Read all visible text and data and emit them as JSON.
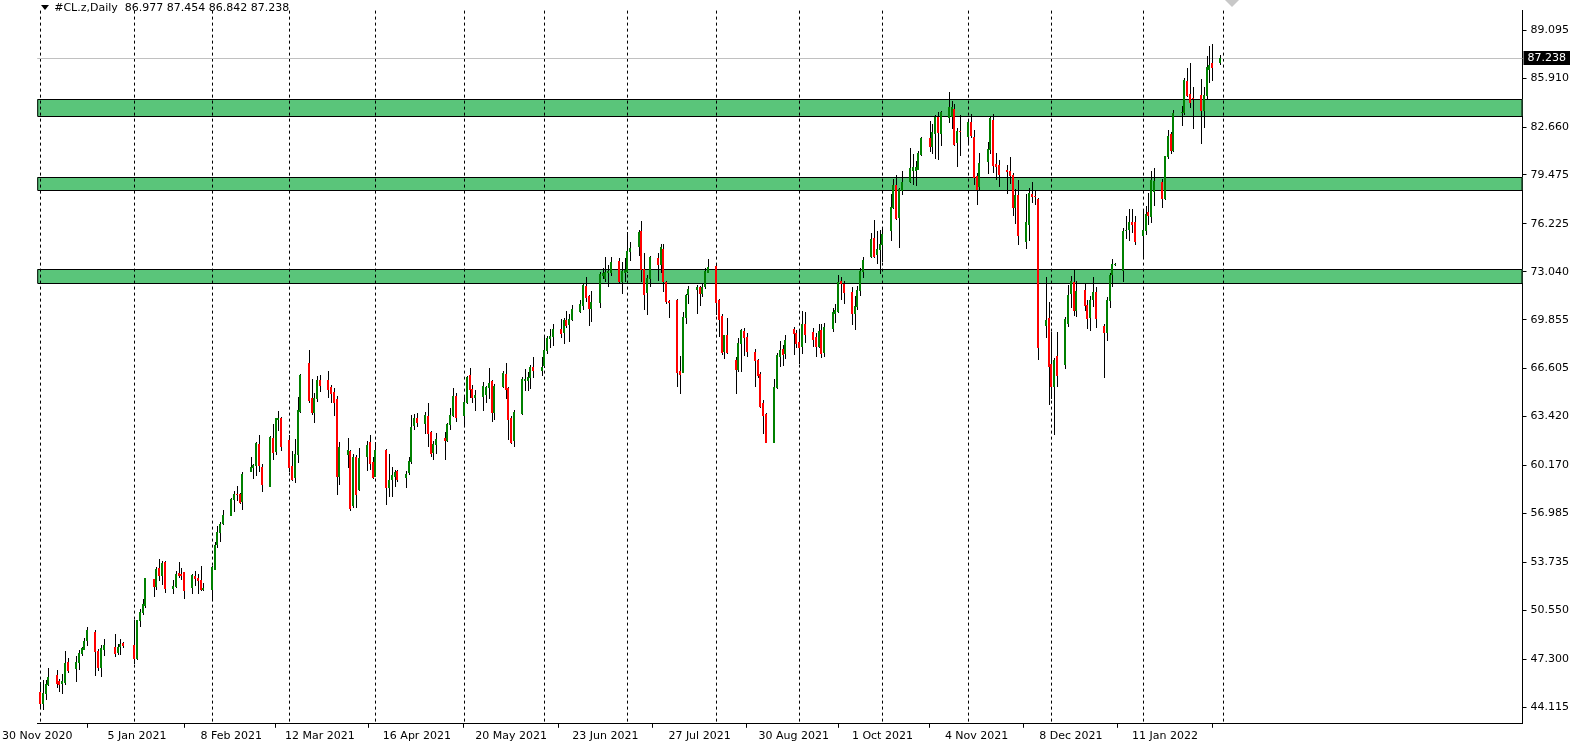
{
  "chart_data": {
    "type": "candlestick",
    "title": "#CL.z,Daily  86.977 87.454 86.842 87.238",
    "x": [
      "2020-12-01",
      "2020-12-02",
      "2020-12-03",
      "2020-12-04",
      "2020-12-07",
      "2020-12-08",
      "2020-12-09",
      "2020-12-10",
      "2020-12-11",
      "2020-12-14",
      "2020-12-15",
      "2020-12-16",
      "2020-12-17",
      "2020-12-18",
      "2020-12-21",
      "2020-12-22",
      "2020-12-23",
      "2020-12-24",
      "2020-12-28",
      "2020-12-29",
      "2020-12-30",
      "2020-12-31",
      "2021-01-04",
      "2021-01-05",
      "2021-01-06",
      "2021-01-07",
      "2021-01-08",
      "2021-01-11",
      "2021-01-12",
      "2021-01-13",
      "2021-01-14",
      "2021-01-15",
      "2021-01-18",
      "2021-01-19",
      "2021-01-20",
      "2021-01-21",
      "2021-01-22",
      "2021-01-25",
      "2021-01-26",
      "2021-01-27",
      "2021-01-28",
      "2021-01-29",
      "2021-02-01",
      "2021-02-02",
      "2021-02-03",
      "2021-02-04",
      "2021-02-05",
      "2021-02-08",
      "2021-02-09",
      "2021-02-10",
      "2021-02-11",
      "2021-02-12",
      "2021-02-15",
      "2021-02-16",
      "2021-02-17",
      "2021-02-18",
      "2021-02-19",
      "2021-02-22",
      "2021-02-23",
      "2021-02-24",
      "2021-02-25",
      "2021-02-26",
      "2021-03-01",
      "2021-03-02",
      "2021-03-03",
      "2021-03-04",
      "2021-03-05",
      "2021-03-08",
      "2021-03-09",
      "2021-03-10",
      "2021-03-11",
      "2021-03-12",
      "2021-03-15",
      "2021-03-16",
      "2021-03-17",
      "2021-03-18",
      "2021-03-19",
      "2021-03-22",
      "2021-03-23",
      "2021-03-24",
      "2021-03-25",
      "2021-03-26",
      "2021-03-29",
      "2021-03-30",
      "2021-03-31",
      "2021-04-01",
      "2021-04-05",
      "2021-04-06",
      "2021-04-07",
      "2021-04-08",
      "2021-04-09",
      "2021-04-12",
      "2021-04-13",
      "2021-04-14",
      "2021-04-15",
      "2021-04-16",
      "2021-04-19",
      "2021-04-20",
      "2021-04-21",
      "2021-04-22",
      "2021-04-23",
      "2021-04-26",
      "2021-04-27",
      "2021-04-28",
      "2021-04-29",
      "2021-04-30",
      "2021-05-03",
      "2021-05-04",
      "2021-05-05",
      "2021-05-06",
      "2021-05-07",
      "2021-05-10",
      "2021-05-11",
      "2021-05-12",
      "2021-05-13",
      "2021-05-14",
      "2021-05-17",
      "2021-05-18",
      "2021-05-19",
      "2021-05-20",
      "2021-05-21",
      "2021-05-24",
      "2021-05-25",
      "2021-05-26",
      "2021-05-27",
      "2021-05-28",
      "2021-05-31",
      "2021-06-01",
      "2021-06-02",
      "2021-06-03",
      "2021-06-04",
      "2021-06-07",
      "2021-06-08",
      "2021-06-09",
      "2021-06-10",
      "2021-06-11",
      "2021-06-14",
      "2021-06-15",
      "2021-06-16",
      "2021-06-17",
      "2021-06-18",
      "2021-06-21",
      "2021-06-22",
      "2021-06-23",
      "2021-06-24",
      "2021-06-25",
      "2021-06-28",
      "2021-06-29",
      "2021-06-30",
      "2021-07-01",
      "2021-07-02",
      "2021-07-05",
      "2021-07-06",
      "2021-07-07",
      "2021-07-08",
      "2021-07-09",
      "2021-07-12",
      "2021-07-13",
      "2021-07-14",
      "2021-07-15",
      "2021-07-16",
      "2021-07-19",
      "2021-07-20",
      "2021-07-21",
      "2021-07-22",
      "2021-07-23",
      "2021-07-26",
      "2021-07-27",
      "2021-07-28",
      "2021-07-29",
      "2021-07-30",
      "2021-08-02",
      "2021-08-03",
      "2021-08-04",
      "2021-08-05",
      "2021-08-06",
      "2021-08-09",
      "2021-08-10",
      "2021-08-11",
      "2021-08-12",
      "2021-08-13",
      "2021-08-16",
      "2021-08-17",
      "2021-08-18",
      "2021-08-19",
      "2021-08-20",
      "2021-08-23",
      "2021-08-24",
      "2021-08-25",
      "2021-08-26",
      "2021-08-27",
      "2021-08-30",
      "2021-08-31",
      "2021-09-01",
      "2021-09-02",
      "2021-09-03",
      "2021-09-06",
      "2021-09-07",
      "2021-09-08",
      "2021-09-09",
      "2021-09-10",
      "2021-09-13",
      "2021-09-14",
      "2021-09-15",
      "2021-09-16",
      "2021-09-17",
      "2021-09-20",
      "2021-09-21",
      "2021-09-22",
      "2021-09-23",
      "2021-09-24",
      "2021-09-27",
      "2021-09-28",
      "2021-09-29",
      "2021-09-30",
      "2021-10-01",
      "2021-10-04",
      "2021-10-05",
      "2021-10-06",
      "2021-10-07",
      "2021-10-08",
      "2021-10-11",
      "2021-10-12",
      "2021-10-13",
      "2021-10-14",
      "2021-10-15",
      "2021-10-18",
      "2021-10-19",
      "2021-10-20",
      "2021-10-21",
      "2021-10-22",
      "2021-10-25",
      "2021-10-26",
      "2021-10-27",
      "2021-10-28",
      "2021-10-29",
      "2021-11-01",
      "2021-11-02",
      "2021-11-03",
      "2021-11-04",
      "2021-11-05",
      "2021-11-08",
      "2021-11-09",
      "2021-11-10",
      "2021-11-11",
      "2021-11-12",
      "2021-11-15",
      "2021-11-16",
      "2021-11-17",
      "2021-11-18",
      "2021-11-19",
      "2021-11-22",
      "2021-11-23",
      "2021-11-24",
      "2021-11-25",
      "2021-11-26",
      "2021-11-29",
      "2021-11-30",
      "2021-12-01",
      "2021-12-02",
      "2021-12-03",
      "2021-12-06",
      "2021-12-07",
      "2021-12-08",
      "2021-12-09",
      "2021-12-10",
      "2021-12-13",
      "2021-12-14",
      "2021-12-15",
      "2021-12-16",
      "2021-12-17",
      "2021-12-20",
      "2021-12-21",
      "2021-12-22",
      "2021-12-23",
      "2021-12-24",
      "2021-12-27",
      "2021-12-28",
      "2021-12-29",
      "2021-12-30",
      "2021-12-31",
      "2022-01-03",
      "2022-01-04",
      "2022-01-05",
      "2022-01-06",
      "2022-01-07",
      "2022-01-10",
      "2022-01-11",
      "2022-01-12",
      "2022-01-13",
      "2022-01-14",
      "2022-01-17",
      "2022-01-18",
      "2022-01-19",
      "2022-01-20",
      "2022-01-21",
      "2022-01-24",
      "2022-01-25",
      "2022-01-26",
      "2022-01-27",
      "2022-01-28",
      "2022-01-31"
    ],
    "ohlc": [
      [
        45.14,
        45.75,
        44.18,
        44.4
      ],
      [
        44.4,
        45.93,
        43.96,
        45.03
      ],
      [
        45.05,
        45.91,
        44.68,
        45.67
      ],
      [
        45.64,
        46.74,
        45.6,
        46.12
      ],
      [
        46.24,
        46.58,
        45.43,
        45.71
      ],
      [
        45.82,
        45.99,
        45.21,
        45.67
      ],
      [
        45.69,
        46.34,
        45.05,
        45.82
      ],
      [
        45.77,
        47.83,
        45.64,
        47.02
      ],
      [
        47.11,
        47.39,
        46.43,
        46.56
      ],
      [
        46.74,
        47.5,
        45.86,
        47.11
      ],
      [
        47.09,
        47.9,
        46.65,
        47.72
      ],
      [
        47.68,
        48.12,
        47.57,
        48.05
      ],
      [
        48.0,
        48.69,
        47.94,
        48.49
      ],
      [
        48.55,
        49.43,
        48.23,
        49.21
      ],
      [
        49.1,
        49.21,
        46.24,
        47.83
      ],
      [
        47.85,
        48.0,
        46.58,
        46.76
      ],
      [
        46.76,
        48.23,
        46.19,
        48.05
      ],
      [
        48.0,
        48.62,
        47.57,
        48.23
      ],
      [
        48.09,
        48.95,
        47.5,
        47.68
      ],
      [
        47.74,
        48.33,
        47.66,
        48.09
      ],
      [
        48.16,
        48.66,
        47.61,
        48.31
      ],
      [
        48.36,
        48.44,
        48.12,
        48.23
      ],
      [
        48.23,
        49.91,
        47.02,
        47.35
      ],
      [
        47.35,
        49.91,
        47.29,
        49.87
      ],
      [
        49.87,
        50.63,
        49.47,
        50.46
      ],
      [
        50.41,
        51.29,
        50.3,
        50.94
      ],
      [
        50.89,
        52.71,
        50.74,
        52.69
      ],
      [
        52.62,
        52.64,
        51.51,
        52.16
      ],
      [
        52.16,
        53.43,
        51.99,
        53.3
      ],
      [
        53.36,
        53.94,
        52.53,
        52.86
      ],
      [
        52.86,
        53.8,
        52.27,
        53.69
      ],
      [
        53.74,
        53.8,
        51.77,
        52.01
      ],
      [
        52.01,
        52.55,
        51.72,
        52.16
      ],
      [
        52.14,
        53.15,
        52.12,
        52.95
      ],
      [
        53.01,
        53.76,
        52.77,
        52.86
      ],
      [
        52.95,
        53.34,
        52.64,
        52.86
      ],
      [
        53.08,
        53.1,
        51.35,
        51.9
      ],
      [
        52.07,
        52.93,
        51.72,
        52.86
      ],
      [
        52.84,
        53.15,
        52.2,
        52.69
      ],
      [
        52.71,
        52.97,
        51.72,
        52.56
      ],
      [
        52.56,
        53.47,
        51.92,
        51.94
      ],
      [
        51.99,
        52.38,
        51.88,
        52.01
      ],
      [
        51.94,
        53.52,
        51.35,
        53.41
      ],
      [
        53.32,
        55.11,
        53.3,
        54.9
      ],
      [
        54.96,
        56.16,
        54.74,
        55.77
      ],
      [
        55.77,
        56.43,
        55.16,
        56.27
      ],
      [
        56.32,
        57.19,
        56.25,
        56.91
      ],
      [
        56.91,
        58.0,
        56.86,
        57.94
      ],
      [
        57.91,
        58.46,
        57.15,
        58.29
      ],
      [
        58.29,
        58.79,
        57.89,
        58.27
      ],
      [
        58.29,
        58.33,
        57.67,
        57.74
      ],
      [
        57.78,
        59.71,
        57.26,
        59.6
      ],
      [
        59.82,
        60.76,
        59.77,
        60.04
      ],
      [
        60.1,
        60.25,
        59.34,
        60.21
      ],
      [
        60.21,
        61.7,
        59.51,
        61.68
      ],
      [
        61.61,
        62.18,
        59.77,
        60.17
      ],
      [
        60.1,
        60.25,
        58.5,
        58.94
      ],
      [
        58.83,
        62.16,
        58.79,
        62.07
      ],
      [
        62.0,
        62.95,
        60.63,
        61.09
      ],
      [
        61.13,
        63.34,
        60.91,
        63.32
      ],
      [
        63.27,
        63.76,
        62.55,
        63.34
      ],
      [
        63.32,
        63.36,
        61.17,
        61.46
      ],
      [
        61.83,
        62.22,
        59.82,
        60.08
      ],
      [
        60.12,
        61.13,
        59.21,
        59.29
      ],
      [
        59.38,
        61.9,
        59.1,
        60.91
      ],
      [
        60.96,
        64.74,
        60.41,
        63.86
      ],
      [
        63.82,
        66.27,
        63.71,
        66.16
      ],
      [
        66.99,
        67.87,
        64.41,
        64.52
      ],
      [
        64.63,
        65.9,
        63.58,
        63.71
      ],
      [
        63.75,
        64.96,
        63.03,
        64.63
      ],
      [
        64.63,
        66.12,
        64.46,
        65.83
      ],
      [
        65.88,
        66.16,
        65.13,
        65.5
      ],
      [
        65.88,
        66.42,
        64.74,
        65.24
      ],
      [
        65.37,
        65.55,
        64.37,
        64.96
      ],
      [
        65.02,
        65.29,
        63.54,
        64.37
      ],
      [
        64.56,
        64.8,
        58.24,
        59.49
      ],
      [
        59.49,
        61.74,
        58.94,
        61.42
      ],
      [
        60.96,
        62.0,
        60.04,
        61.22
      ],
      [
        61.13,
        61.17,
        57.19,
        57.35
      ],
      [
        57.52,
        60.91,
        57.41,
        60.76
      ],
      [
        60.74,
        60.85,
        57.41,
        58.24
      ],
      [
        58.62,
        61.35,
        58.57,
        60.69
      ],
      [
        60.8,
        61.79,
        59.88,
        61.52
      ],
      [
        61.74,
        62.22,
        59.93,
        60.36
      ],
      [
        60.43,
        60.74,
        59.34,
        59.38
      ],
      [
        59.46,
        61.74,
        59.44,
        61.22
      ],
      [
        61.17,
        61.24,
        57.63,
        58.72
      ],
      [
        58.77,
        60.91,
        58.11,
        59.21
      ],
      [
        59.25,
        60.04,
        58.13,
        59.53
      ],
      [
        59.49,
        59.88,
        58.79,
        59.73
      ],
      [
        59.8,
        59.88,
        59.12,
        59.29
      ],
      [
        59.38,
        59.82,
        58.72,
        59.6
      ],
      [
        59.71,
        60.74,
        59.6,
        60.47
      ],
      [
        60.47,
        63.49,
        60.36,
        62.73
      ],
      [
        62.88,
        63.58,
        62.6,
        63.32
      ],
      [
        63.32,
        63.65,
        62.77,
        63.06
      ],
      [
        62.99,
        63.71,
        62.33,
        63.49
      ],
      [
        63.47,
        64.3,
        61.46,
        62.33
      ],
      [
        62.4,
        62.49,
        60.8,
        61.02
      ],
      [
        61.06,
        61.79,
        60.58,
        61.57
      ],
      [
        61.57,
        62.33,
        61.02,
        61.96
      ],
      [
        62.01,
        62.4,
        60.58,
        61.87
      ],
      [
        61.85,
        62.99,
        61.79,
        62.92
      ],
      [
        62.92,
        63.97,
        62.62,
        63.54
      ],
      [
        63.54,
        65.33,
        63.43,
        64.78
      ],
      [
        64.78,
        64.96,
        63.1,
        63.38
      ],
      [
        63.49,
        64.74,
        62.77,
        64.37
      ],
      [
        64.41,
        66.12,
        64.3,
        66.03
      ],
      [
        66.2,
        66.66,
        64.74,
        65.22
      ],
      [
        65.24,
        65.5,
        64.37,
        64.74
      ],
      [
        64.74,
        65.18,
        63.86,
        64.85
      ],
      [
        64.8,
        65.72,
        63.86,
        65.44
      ],
      [
        64.89,
        65.46,
        64.37,
        65.4
      ],
      [
        65.4,
        66.64,
        64.63,
        65.68
      ],
      [
        65.81,
        65.88,
        63.1,
        63.69
      ],
      [
        63.75,
        65.61,
        63.27,
        65.44
      ],
      [
        65.44,
        66.42,
        65.4,
        66.34
      ],
      [
        66.27,
        66.99,
        64.63,
        65.22
      ],
      [
        65.29,
        65.4,
        61.9,
        63.25
      ],
      [
        63.32,
        63.43,
        61.68,
        61.72
      ],
      [
        61.85,
        63.86,
        61.46,
        63.75
      ],
      [
        63.65,
        66.05,
        63.58,
        65.94
      ],
      [
        65.88,
        66.6,
        65.18,
        65.94
      ],
      [
        65.88,
        66.38,
        65.18,
        66.05
      ],
      [
        66.05,
        66.82,
        65.33,
        66.73
      ],
      [
        66.73,
        67.36,
        66.05,
        66.53
      ],
      [
        66.53,
        67.36,
        66.2,
        66.73
      ],
      [
        66.82,
        68.79,
        66.71,
        67.85
      ],
      [
        67.85,
        68.79,
        67.63,
        68.63
      ],
      [
        68.61,
        69.22,
        68.02,
        68.76
      ],
      [
        68.76,
        69.55,
        68.17,
        69.25
      ],
      [
        69.27,
        69.88,
        68.68,
        68.98
      ],
      [
        69.07,
        69.95,
        68.3,
        69.81
      ],
      [
        69.84,
        70.43,
        69.4,
        69.53
      ],
      [
        69.6,
        70.21,
        68.46,
        69.88
      ],
      [
        69.92,
        70.82,
        69.81,
        70.54
      ],
      [
        70.45,
        71.19,
        70.36,
        70.89
      ],
      [
        70.84,
        72.22,
        70.54,
        72.13
      ],
      [
        72.11,
        72.72,
        71.08,
        71.37
      ],
      [
        71.45,
        71.52,
        69.53,
        70.65
      ],
      [
        70.65,
        71.74,
        69.77,
        71.02
      ],
      [
        71.02,
        73.03,
        70.69,
        72.9
      ],
      [
        72.83,
        73.31,
        72.61,
        72.94
      ],
      [
        72.66,
        74.04,
        72.4,
        73.05
      ],
      [
        73.01,
        73.49,
        72.07,
        73.12
      ],
      [
        73.05,
        74.04,
        72.83,
        73.71
      ],
      [
        73.75,
        73.93,
        72.29,
        72.44
      ],
      [
        72.44,
        73.71,
        71.63,
        73.09
      ],
      [
        73.01,
        73.93,
        72.4,
        73.14
      ],
      [
        73.09,
        75.68,
        73.01,
        74.43
      ],
      [
        74.45,
        75.02,
        73.82,
        74.63
      ],
      [
        74.73,
        75.83,
        74.15,
        75.68
      ],
      [
        75.74,
        76.4,
        72.4,
        73.23
      ],
      [
        73.23,
        74.32,
        70.58,
        71.56
      ],
      [
        71.72,
        72.83,
        70.25,
        72.66
      ],
      [
        72.61,
        74.1,
        72.07,
        74.04
      ],
      [
        73.99,
        74.3,
        72.5,
        73.53
      ],
      [
        73.53,
        74.91,
        73.05,
        74.67
      ],
      [
        74.54,
        74.87,
        71.74,
        72.44
      ],
      [
        72.37,
        72.46,
        70.97,
        71.08
      ],
      [
        71.13,
        71.19,
        70.03,
        71.04
      ],
      [
        71.19,
        71.26,
        65.44,
        66.38
      ],
      [
        66.47,
        67.47,
        64.96,
        66.25
      ],
      [
        66.38,
        70.36,
        66.36,
        70.03
      ],
      [
        70.03,
        71.59,
        69.66,
        71.52
      ],
      [
        71.56,
        72.07,
        70.97,
        71.91
      ],
      [
        71.89,
        72.13,
        70.32,
        72.0
      ],
      [
        72.0,
        72.11,
        70.84,
        71.63
      ],
      [
        71.63,
        72.24,
        71.41,
        72.02
      ],
      [
        72.07,
        73.27,
        71.96,
        73.09
      ],
      [
        73.03,
        73.88,
        73.0,
        73.36
      ],
      [
        73.42,
        73.49,
        70.21,
        71.04
      ],
      [
        71.19,
        71.21,
        68.79,
        69.92
      ],
      [
        70.1,
        70.21,
        67.58,
        67.69
      ],
      [
        67.76,
        68.87,
        67.3,
        68.85
      ],
      [
        68.85,
        69.95,
        67.67,
        67.69
      ],
      [
        67.21,
        67.36,
        65.0,
        66.6
      ],
      [
        66.6,
        68.63,
        66.42,
        68.28
      ],
      [
        68.28,
        69.22,
        66.45,
        69.16
      ],
      [
        69.11,
        69.33,
        67.52,
        68.72
      ],
      [
        68.72,
        68.96,
        67.47,
        67.76
      ],
      [
        67.74,
        67.91,
        65.46,
        67.19
      ],
      [
        67.19,
        67.25,
        66.05,
        66.2
      ],
      [
        66.27,
        66.38,
        64.04,
        64.13
      ],
      [
        64.35,
        64.52,
        62.33,
        63.54
      ],
      [
        63.58,
        63.65,
        61.7,
        61.72
      ],
      [
        61.72,
        65.9,
        61.7,
        65.4
      ],
      [
        65.4,
        67.65,
        65.29,
        67.52
      ],
      [
        67.43,
        68.41,
        66.77,
        67.85
      ],
      [
        67.91,
        68.17,
        66.86,
        67.58
      ],
      [
        67.63,
        68.83,
        67.3,
        68.5
      ],
      [
        69.22,
        69.4,
        67.58,
        68.94
      ],
      [
        68.96,
        69.16,
        68.02,
        68.28
      ],
      [
        68.35,
        69.22,
        66.99,
        68.02
      ],
      [
        68.09,
        70.43,
        67.63,
        69.55
      ],
      [
        69.55,
        70.36,
        68.35,
        68.89
      ],
      [
        69.07,
        69.33,
        68.09,
        68.57
      ],
      [
        68.7,
        69.0,
        67.43,
        68.13
      ],
      [
        68.13,
        69.55,
        68.02,
        69.09
      ],
      [
        69.16,
        69.55,
        67.37,
        67.63
      ],
      [
        67.69,
        69.66,
        67.43,
        69.38
      ],
      [
        69.33,
        70.65,
        69.11,
        70.4
      ],
      [
        70.32,
        70.93,
        69.73,
        70.47
      ],
      [
        70.43,
        72.83,
        70.36,
        72.33
      ],
      [
        72.4,
        72.72,
        71.24,
        72.29
      ],
      [
        72.24,
        72.46,
        70.97,
        71.7
      ],
      [
        71.67,
        72.02,
        69.6,
        70.32
      ],
      [
        70.32,
        71.41,
        69.27,
        70.75
      ],
      [
        70.75,
        72.07,
        70.54,
        71.85
      ],
      [
        71.85,
        73.27,
        71.52,
        73.12
      ],
      [
        73.12,
        74.04,
        72.72,
        73.82
      ],
      [
        74.1,
        75.63,
        74.04,
        75.19
      ],
      [
        75.26,
        76.51,
        74.04,
        74.1
      ],
      [
        74.21,
        75.78,
        73.6,
        74.54
      ],
      [
        74.58,
        75.85,
        72.94,
        74.87
      ],
      [
        74.87,
        76.0,
        73.75,
        75.52
      ],
      [
        75.79,
        78.19,
        75.13,
        77.36
      ],
      [
        77.36,
        79.22,
        77.27,
        78.8
      ],
      [
        78.8,
        79.5,
        76.55,
        76.6
      ],
      [
        76.7,
        78.63,
        74.69,
        78.56
      ],
      [
        78.45,
        79.72,
        78.19,
        79.02
      ],
      [
        79.07,
        81.25,
        79.0,
        79.94
      ],
      [
        79.83,
        80.86,
        78.89,
        79.98
      ],
      [
        79.83,
        80.38,
        78.78,
        80.01
      ],
      [
        79.9,
        81.08,
        79.88,
        80.93
      ],
      [
        80.88,
        82.02,
        80.77,
        81.91
      ],
      [
        81.95,
        83.07,
        81.08,
        81.43
      ],
      [
        81.41,
        82.89,
        80.93,
        82.3
      ],
      [
        82.28,
        83.48,
        80.6,
        83.33
      ],
      [
        83.33,
        83.66,
        80.55,
        82.35
      ],
      [
        82.28,
        83.73,
        81.47,
        83.66
      ],
      [
        83.33,
        84.97,
        83.0,
        83.99
      ],
      [
        83.4,
        84.36,
        82.61,
        83.99
      ],
      [
        83.88,
        84.21,
        81.47,
        81.54
      ],
      [
        81.69,
        82.61,
        80.05,
        82.41
      ],
      [
        82.41,
        83.44,
        80.82,
        82.39
      ],
      [
        82.09,
        83.22,
        81.69,
        83.0
      ],
      [
        83.0,
        83.55,
        82.02,
        82.13
      ],
      [
        82.02,
        82.46,
        78.89,
        79.33
      ],
      [
        79.4,
        79.61,
        77.54,
        78.56
      ],
      [
        78.74,
        80.93,
        78.45,
        80.27
      ],
      [
        80.38,
        81.69,
        79.61,
        81.21
      ],
      [
        81.19,
        83.4,
        80.93,
        83.27
      ],
      [
        83.11,
        83.55,
        79.68,
        80.12
      ],
      [
        80.23,
        80.93,
        79.18,
        80.09
      ],
      [
        80.12,
        80.49,
        78.74,
        79.57
      ],
      [
        79.79,
        80.12,
        78.26,
        79.77
      ],
      [
        79.72,
        80.64,
        78.91,
        79.5
      ],
      [
        79.5,
        79.61,
        76.81,
        77.32
      ],
      [
        77.32,
        78.52,
        76.27,
        78.15
      ],
      [
        78.15,
        79.13,
        74.91,
        75.5
      ],
      [
        75.06,
        78.19,
        74.59,
        76.33
      ],
      [
        76.22,
        78.63,
        75.13,
        78.3
      ],
      [
        78.24,
        79.02,
        77.71,
        78.06
      ],
      [
        78.08,
        78.45,
        77.54,
        78.06
      ],
      [
        77.91,
        77.97,
        67.26,
        68.02
      ],
      [
        69.49,
        72.72,
        68.68,
        69.81
      ],
      [
        69.95,
        71.02,
        64.26,
        66.78
      ],
      [
        66.93,
        69.05,
        64.67,
        65.46
      ],
      [
        65.46,
        67.32,
        62.27,
        67.19
      ],
      [
        67.47,
        69.05,
        65.46,
        66.16
      ],
      [
        66.93,
        70.03,
        66.64,
        69.88
      ],
      [
        69.62,
        72.18,
        69.44,
        71.52
      ],
      [
        71.63,
        72.77,
        70.69,
        72.44
      ],
      [
        72.35,
        73.16,
        70.16,
        70.47
      ],
      [
        70.47,
        72.4,
        70.1,
        71.78
      ],
      [
        71.85,
        72.29,
        70.49,
        70.86
      ],
      [
        70.86,
        71.19,
        69.29,
        69.99
      ],
      [
        70.05,
        71.45,
        69.16,
        71.19
      ],
      [
        71.24,
        72.72,
        70.75,
        71.67
      ],
      [
        71.72,
        72.0,
        69.38,
        69.99
      ],
      [
        69.44,
        69.55,
        66.05,
        69.07
      ],
      [
        69.07,
        71.37,
        68.5,
        71.19
      ],
      [
        71.19,
        72.99,
        70.69,
        72.83
      ],
      [
        72.9,
        73.86,
        72.11,
        73.55
      ],
      [
        73.55,
        73.6,
        73.51,
        73.58
      ],
      [
        73.16,
        75.94,
        72.4,
        75.72
      ],
      [
        75.81,
        76.73,
        75.31,
        75.85
      ],
      [
        75.89,
        77.21,
        75.17,
        76.38
      ],
      [
        76.38,
        77.21,
        75.68,
        76.22
      ],
      [
        76.38,
        76.77,
        74.91,
        75.06
      ],
      [
        75.5,
        77.21,
        74.04,
        75.79
      ],
      [
        75.85,
        77.43,
        75.52,
        76.88
      ],
      [
        76.99,
        78.3,
        76.22,
        76.84
      ],
      [
        76.77,
        79.72,
        76.33,
        79.13
      ],
      [
        78.41,
        79.94,
        77.49,
        79.07
      ],
      [
        79.02,
        79.18,
        77.38,
        77.93
      ],
      [
        77.93,
        80.73,
        77.87,
        80.71
      ],
      [
        80.71,
        82.46,
        80.6,
        82.09
      ],
      [
        82.17,
        82.3,
        80.93,
        81.14
      ],
      [
        81.14,
        83.77,
        81.1,
        83.59
      ],
      [
        83.64,
        84.05,
        82.83,
        83.68
      ],
      [
        83.66,
        85.89,
        83.51,
        85.78
      ],
      [
        85.69,
        86.61,
        84.75,
        84.82
      ],
      [
        84.86,
        86.9,
        83.99,
        84.32
      ],
      [
        84.58,
        85.3,
        82.57,
        84.56
      ],
      [
        84.8,
        85.85,
        81.58,
        83.77
      ],
      [
        83.81,
        85.3,
        82.68,
        84.8
      ],
      [
        84.8,
        87.38,
        84.54,
        86.68
      ],
      [
        86.5,
        88.03,
        85.67,
        86.77
      ],
      [
        86.9,
        88.21,
        85.8,
        86.68
      ],
      [
        86.977,
        87.454,
        86.842,
        87.238
      ]
    ],
    "colors": [
      "#ff0000",
      "#008000",
      "#008000",
      "#008000",
      "#ff0000",
      "#ff0000",
      "#008000",
      "#008000",
      "#ff0000",
      "#008000",
      "#008000",
      "#008000",
      "#008000",
      "#008000",
      "#ff0000",
      "#ff0000",
      "#008000",
      "#008000",
      "#ff0000",
      "#008000",
      "#008000",
      "#ff0000",
      "#ff0000",
      "#008000",
      "#008000",
      "#008000",
      "#008000",
      "#ff0000",
      "#008000",
      "#ff0000",
      "#008000",
      "#ff0000",
      "#008000",
      "#008000",
      "#ff0000",
      "#ff0000",
      "#ff0000",
      "#008000",
      "#ff0000",
      "#ff0000",
      "#ff0000",
      "#008000",
      "#008000",
      "#008000",
      "#008000",
      "#008000",
      "#008000",
      "#008000",
      "#008000",
      "#ff0000",
      "#ff0000",
      "#008000",
      "#008000",
      "#008000",
      "#008000",
      "#ff0000",
      "#ff0000",
      "#008000",
      "#ff0000",
      "#008000",
      "#008000",
      "#ff0000",
      "#ff0000",
      "#ff0000",
      "#008000",
      "#008000",
      "#008000",
      "#ff0000",
      "#ff0000",
      "#008000",
      "#008000",
      "#ff0000",
      "#ff0000",
      "#ff0000",
      "#ff0000",
      "#ff0000",
      "#008000",
      "#008000",
      "#ff0000",
      "#008000",
      "#ff0000",
      "#008000",
      "#008000",
      "#ff0000",
      "#ff0000",
      "#008000",
      "#ff0000",
      "#008000",
      "#008000",
      "#008000",
      "#ff0000",
      "#008000",
      "#008000",
      "#008000",
      "#008000",
      "#ff0000",
      "#008000",
      "#ff0000",
      "#ff0000",
      "#008000",
      "#008000",
      "#ff0000",
      "#008000",
      "#008000",
      "#008000",
      "#ff0000",
      "#008000",
      "#008000",
      "#ff0000",
      "#ff0000",
      "#008000",
      "#008000",
      "#008000",
      "#008000",
      "#ff0000",
      "#008000",
      "#008000",
      "#ff0000",
      "#ff0000",
      "#ff0000",
      "#008000",
      "#008000",
      "#008000",
      "#008000",
      "#008000",
      "#ff0000",
      "#008000",
      "#008000",
      "#008000",
      "#008000",
      "#008000",
      "#ff0000",
      "#008000",
      "#ff0000",
      "#008000",
      "#008000",
      "#008000",
      "#008000",
      "#ff0000",
      "#ff0000",
      "#008000",
      "#008000",
      "#008000",
      "#008000",
      "#008000",
      "#008000",
      "#ff0000",
      "#008000",
      "#008000",
      "#008000",
      "#008000",
      "#008000",
      "#ff0000",
      "#ff0000",
      "#008000",
      "#008000",
      "#ff0000",
      "#008000",
      "#ff0000",
      "#ff0000",
      "#ff0000",
      "#ff0000",
      "#ff0000",
      "#008000",
      "#008000",
      "#008000",
      "#008000",
      "#ff0000",
      "#008000",
      "#008000",
      "#008000",
      "#ff0000",
      "#ff0000",
      "#ff0000",
      "#008000",
      "#ff0000",
      "#ff0000",
      "#008000",
      "#008000",
      "#ff0000",
      "#ff0000",
      "#ff0000",
      "#ff0000",
      "#ff0000",
      "#ff0000",
      "#ff0000",
      "#008000",
      "#008000",
      "#008000",
      "#ff0000",
      "#008000",
      "#ff0000",
      "#ff0000",
      "#ff0000",
      "#008000",
      "#ff0000",
      "#ff0000",
      "#ff0000",
      "#008000",
      "#ff0000",
      "#008000",
      "#008000",
      "#008000",
      "#008000",
      "#ff0000",
      "#ff0000",
      "#ff0000",
      "#008000",
      "#008000",
      "#008000",
      "#008000",
      "#008000",
      "#ff0000",
      "#008000",
      "#008000",
      "#008000",
      "#008000",
      "#008000",
      "#ff0000",
      "#008000",
      "#008000",
      "#008000",
      "#008000",
      "#008000",
      "#008000",
      "#008000",
      "#ff0000",
      "#008000",
      "#008000",
      "#ff0000",
      "#008000",
      "#008000",
      "#008000",
      "#ff0000",
      "#008000",
      "#ff0000",
      "#008000",
      "#ff0000",
      "#ff0000",
      "#ff0000",
      "#008000",
      "#008000",
      "#008000",
      "#ff0000",
      "#ff0000",
      "#ff0000",
      "#ff0000",
      "#ff0000",
      "#ff0000",
      "#008000",
      "#ff0000",
      "#008000",
      "#008000",
      "#ff0000",
      "#ff0000",
      "#ff0000",
      "#008000",
      "#ff0000",
      "#ff0000",
      "#008000",
      "#ff0000",
      "#008000",
      "#008000",
      "#008000",
      "#ff0000",
      "#008000",
      "#ff0000",
      "#ff0000",
      "#008000",
      "#008000",
      "#ff0000",
      "#ff0000",
      "#008000",
      "#008000",
      "#008000",
      "#008000",
      "#008000",
      "#008000",
      "#008000",
      "#ff0000",
      "#ff0000",
      "#008000",
      "#008000",
      "#ff0000",
      "#008000",
      "#008000",
      "#ff0000",
      "#008000",
      "#008000",
      "#ff0000",
      "#008000",
      "#008000",
      "#008000",
      "#ff0000",
      "#ff0000",
      "#ff0000",
      "#ff0000",
      "#008000",
      "#008000",
      "#008000",
      "#ff0000",
      "#008000"
    ],
    "xlim": [
      "2020-11-30",
      "2022-05-20"
    ],
    "xticks": [
      {
        "value": "2020-11-30",
        "label": "30 Nov 2020"
      },
      {
        "value": "2021-01-05",
        "label": "5 Jan 2021"
      },
      {
        "value": "2021-02-08",
        "label": "8 Feb 2021"
      },
      {
        "value": "2021-03-12",
        "label": "12 Mar 2021"
      },
      {
        "value": "2021-04-16",
        "label": "16 Apr 2021"
      },
      {
        "value": "2021-05-20",
        "label": "20 May 2021"
      },
      {
        "value": "2021-06-23",
        "label": "23 Jun 2021"
      },
      {
        "value": "2021-07-27",
        "label": "27 Jul 2021"
      },
      {
        "value": "2021-08-30",
        "label": "30 Aug 2021"
      },
      {
        "value": "2021-10-01",
        "label": "1 Oct 2021"
      },
      {
        "value": "2021-11-04",
        "label": "4 Nov 2021"
      },
      {
        "value": "2021-12-08",
        "label": "8 Dec 2021"
      },
      {
        "value": "2022-01-11",
        "label": "11 Jan 2022"
      }
    ],
    "ylim": [
      43.0,
      90.4
    ],
    "yticks": [
      44.115,
      {
        "value": 47.3,
        "label": "47.300"
      },
      {
        "value": 50.55,
        "label": "50.550"
      },
      53.735,
      56.985,
      {
        "value": 60.17,
        "label": "60.170"
      },
      {
        "value": 63.42,
        "label": "63.420"
      },
      66.605,
      69.855,
      {
        "value": 73.04,
        "label": "73.040"
      },
      76.225,
      79.475,
      {
        "value": 82.66,
        "label": "82.660"
      },
      {
        "value": 85.91,
        "label": "85.910"
      },
      89.095
    ],
    "ref_lines": [
      {
        "axis": "x",
        "value": "2020-12-01",
        "color": "#000000",
        "line_style": "dashed"
      },
      {
        "axis": "x",
        "value": "2021-01-04",
        "color": "#000000",
        "line_style": "dashed"
      },
      {
        "axis": "x",
        "value": "2021-02-01",
        "color": "#000000",
        "line_style": "dashed"
      },
      {
        "axis": "x",
        "value": "2021-03-01",
        "color": "#000000",
        "line_style": "dashed"
      },
      {
        "axis": "x",
        "value": "2021-04-01",
        "color": "#000000",
        "line_style": "dashed"
      },
      {
        "axis": "x",
        "value": "2021-05-03",
        "color": "#000000",
        "line_style": "dashed"
      },
      {
        "axis": "x",
        "value": "2021-06-01",
        "color": "#000000",
        "line_style": "dashed"
      },
      {
        "axis": "x",
        "value": "2021-07-01",
        "color": "#000000",
        "line_style": "dashed"
      },
      {
        "axis": "x",
        "value": "2021-08-02",
        "color": "#000000",
        "line_style": "dashed"
      },
      {
        "axis": "x",
        "value": "2021-09-01",
        "color": "#000000",
        "line_style": "dashed"
      },
      {
        "axis": "x",
        "value": "2021-10-01",
        "color": "#000000",
        "line_style": "dashed"
      },
      {
        "axis": "x",
        "value": "2021-11-01",
        "color": "#000000",
        "line_style": "dashed"
      },
      {
        "axis": "x",
        "value": "2021-12-01",
        "color": "#000000",
        "line_style": "dashed"
      },
      {
        "axis": "x",
        "value": "2022-01-03",
        "color": "#000000",
        "line_style": "dashed"
      },
      {
        "axis": "x",
        "value": "2022-02-01",
        "color": "#000000",
        "line_style": "dashed"
      },
      {
        "axis": "y",
        "value": 87.238,
        "label": "87.238",
        "color": "#c0c0c0"
      }
    ],
    "bands": [
      {
        "axis": "y",
        "from": 83.4,
        "to": 84.51,
        "color": "#5ac57a"
      },
      {
        "axis": "y",
        "from": 78.48,
        "to": 79.33,
        "color": "#5ac57a"
      },
      {
        "axis": "y",
        "from": 72.31,
        "to": 73.23,
        "color": "#5ac57a"
      }
    ]
  }
}
